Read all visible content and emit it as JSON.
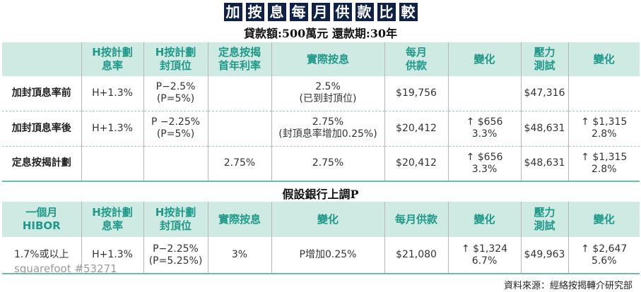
{
  "title_chars": [
    "加",
    "按",
    "息",
    "每",
    "月",
    "供",
    "款",
    "比",
    "較"
  ],
  "subtitle": "貸款額:500萬元  還款期:30年",
  "table1": {
    "headers": [
      "",
      "H按計劃\n息率",
      "H按計劃\n封頂位",
      "定息按揭\n首年利率",
      "實際按息",
      "每月\n供款",
      "變化",
      "壓力\n測試",
      "變化"
    ],
    "rows": [
      [
        "加封頂息率前",
        "H+1.3%",
        "P−2.5%\n(P=5%)",
        "",
        "2.5%\n(已到封頂位)",
        "$19,756",
        "",
        "$47,316",
        ""
      ],
      [
        "加封頂息率後",
        "H+1.3%",
        "P −2.25%\n(P=5%)",
        "",
        "2.75%\n(封頂息率增加0.25%)",
        "$20,412",
        "↑ $656\n3.3%",
        "$48,631",
        "↑ $1,315\n2.8%"
      ],
      [
        "定息按揭計劃",
        "",
        "",
        "2.75%",
        "2.75%",
        "$20,412",
        "↑ $656\n3.3%",
        "$48,631",
        "↑ $1,315\n2.8%"
      ]
    ]
  },
  "section2_title": "假設銀行上調P",
  "table2": {
    "headers": [
      "一個月\nHIBOR",
      "H按計劃\n息率",
      "H按計劃\n封頂位",
      "實際按息",
      "變化",
      "每月供款",
      "變化",
      "壓力\n測試",
      "變化"
    ],
    "rows": [
      [
        "1.7%或以上",
        "H+1.3%",
        "P−2.25%\n(P=5.25%)",
        "3%",
        "P增加0.25%",
        "$21,080",
        "↑ $1,324\n6.7%",
        "$49,963",
        "↑  $2,647\n5.6%"
      ]
    ]
  },
  "watermark": "squarefoot #53271",
  "source": "資料來源：經絡按揭轉介研究部"
}
